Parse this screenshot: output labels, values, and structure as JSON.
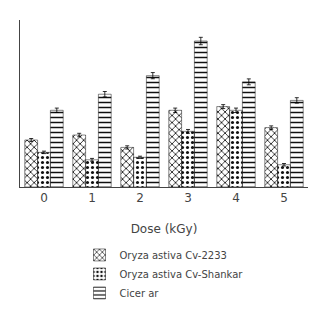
{
  "chart_data": {
    "type": "bar",
    "title": "",
    "xlabel": "Dose (kGy)",
    "categories": [
      "0",
      "1",
      "2",
      "3",
      "4",
      "5"
    ],
    "series": [
      {
        "name": "Oryza astiva Cv-2233",
        "color": "#b0b0b0",
        "values": [
          0.38,
          0.42,
          0.32,
          0.62,
          0.65,
          0.48
        ],
        "errors": [
          0.012,
          0.014,
          0.013,
          0.018,
          0.016,
          0.014
        ]
      },
      {
        "name": "Oryza astiva Cv-Shankar",
        "color": "#c8c8c8",
        "values": [
          0.28,
          0.22,
          0.24,
          0.45,
          0.62,
          0.18
        ],
        "errors": [
          0.01,
          0.011,
          0.009,
          0.015,
          0.018,
          0.01
        ]
      },
      {
        "name": "Cicer ar",
        "color": "#e8e8e8",
        "values": [
          0.62,
          0.75,
          0.9,
          1.18,
          0.85,
          0.7
        ],
        "errors": [
          0.018,
          0.022,
          0.025,
          0.03,
          0.024,
          0.022
        ]
      }
    ],
    "ylim": [
      0,
      1.35
    ],
    "tick_labels": "x",
    "grid": false
  }
}
